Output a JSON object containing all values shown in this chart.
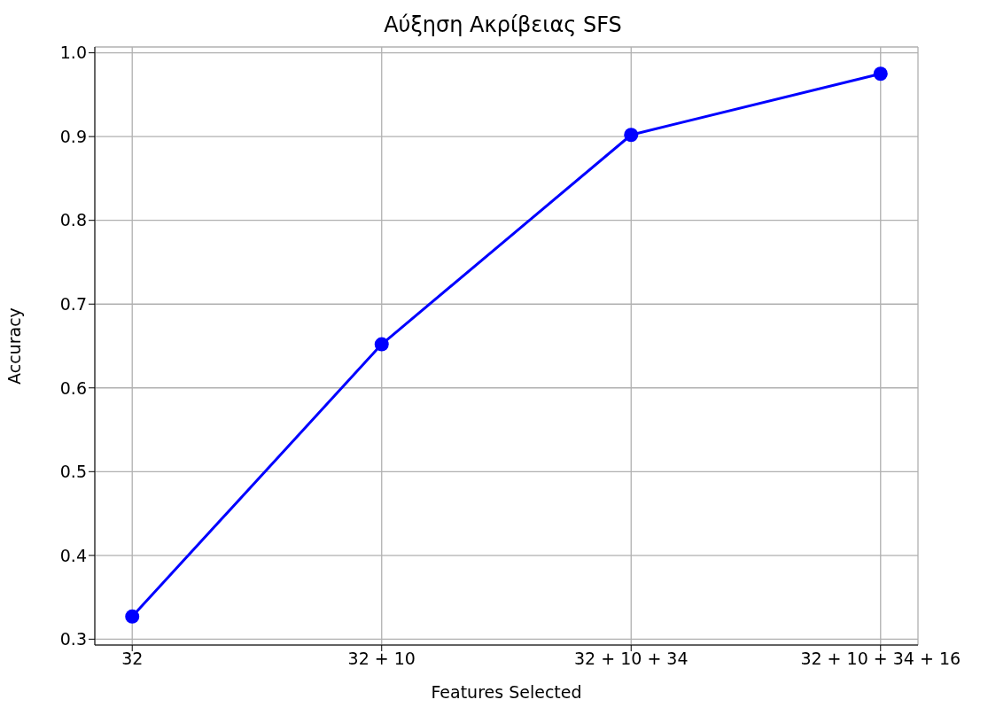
{
  "chart_data": {
    "type": "line",
    "title": "Αύξηση Ακρίβειας SFS",
    "xlabel": "Features Selected",
    "ylabel": "Accuracy",
    "categories": [
      "32",
      "32 + 10",
      "32 + 10 + 34",
      "32 + 10 + 34 + 16"
    ],
    "series": [
      {
        "color": "#0000ff",
        "values": [
          0.327,
          0.652,
          0.902,
          0.975
        ]
      }
    ],
    "ylim": [
      0.293,
      1.007
    ],
    "yticks": [
      {
        "value": 0.3,
        "label": "0.3"
      },
      {
        "value": 0.4,
        "label": "0.4"
      },
      {
        "value": 0.5,
        "label": "0.5"
      },
      {
        "value": 0.6,
        "label": "0.6"
      },
      {
        "value": 0.7,
        "label": "0.7"
      },
      {
        "value": 0.8,
        "label": "0.8"
      },
      {
        "value": 0.9,
        "label": "0.9"
      },
      {
        "value": 1.0,
        "label": "1.0"
      }
    ],
    "grid": true,
    "marker": "circle",
    "line_style": "solid"
  }
}
